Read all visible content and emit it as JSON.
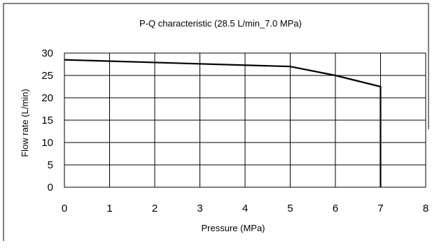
{
  "chart_data": {
    "type": "line",
    "title": "P-Q characteristic (28.5 L/min_7.0 MPa)",
    "xlabel": "Pressure (MPa)",
    "ylabel": "Flow rate (L/min)",
    "xlim": [
      0,
      8
    ],
    "ylim": [
      0,
      30
    ],
    "xticks": [
      0,
      1,
      2,
      3,
      4,
      5,
      6,
      7,
      8
    ],
    "yticks": [
      0,
      5,
      10,
      15,
      20,
      25,
      30
    ],
    "grid": true,
    "legend": "none",
    "series": [
      {
        "x": [
          0,
          5,
          6,
          7,
          7
        ],
        "y": [
          28.5,
          27.0,
          25.0,
          22.5,
          0
        ],
        "color": "#000000"
      }
    ]
  }
}
